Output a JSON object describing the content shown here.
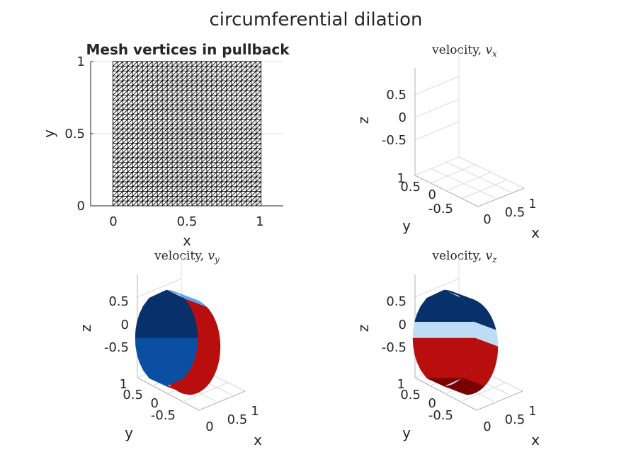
{
  "figure": {
    "title": "circumferential dilation"
  },
  "chart_data": [
    {
      "type": "mesh",
      "title": "Mesh vertices in pullback",
      "xlabel": "x",
      "ylabel": "y",
      "xlim": [
        -0.15,
        1.15
      ],
      "ylim": [
        0,
        1
      ],
      "xticks": [
        "0",
        "0.5",
        "1"
      ],
      "yticks": [
        "0",
        "0.5",
        "1"
      ],
      "mesh_domain": {
        "x": [
          0,
          1
        ],
        "y": [
          0,
          1
        ]
      },
      "mesh_divisions_x": 30,
      "mesh_divisions_y": 30,
      "triangulated": true,
      "grid": true
    },
    {
      "type": "surface3d",
      "title_text": "velocity, ",
      "title_var": "v",
      "title_sub": "x",
      "xlabel": "x",
      "ylabel": "y",
      "zlabel": "z",
      "xticks": [
        "0",
        "0.5",
        "1"
      ],
      "yticks": [
        "-0.5",
        "0",
        "0.5",
        "1"
      ],
      "zticks": [
        "-0.5",
        "0",
        "0.5"
      ],
      "surface_visible": false,
      "colormap": "blue-white-red"
    },
    {
      "type": "surface3d",
      "title_text": "velocity, ",
      "title_var": "v",
      "title_sub": "y",
      "xlabel": "x",
      "ylabel": "y",
      "zlabel": "z",
      "xticks": [
        "0",
        "0.5",
        "1"
      ],
      "yticks": [
        "-0.5",
        "0",
        "0.5",
        "1"
      ],
      "zticks": [
        "-0.5",
        "0",
        "0.5"
      ],
      "surface_visible": true,
      "shape": "cylinder, axis along x",
      "colormap": "blue-white-red",
      "front_face": "blue",
      "back_face": "red"
    },
    {
      "type": "surface3d",
      "title_text": "velocity, ",
      "title_var": "v",
      "title_sub": "z",
      "xlabel": "x",
      "ylabel": "y",
      "zlabel": "z",
      "xticks": [
        "0",
        "0.5",
        "1"
      ],
      "yticks": [
        "-0.5",
        "0",
        "0.5",
        "1"
      ],
      "zticks": [
        "-0.5",
        "0",
        "0.5"
      ],
      "surface_visible": true,
      "shape": "cylinder, axis along x",
      "colormap": "blue-white-red",
      "top": "blue",
      "bottom": "red"
    }
  ],
  "colors": {
    "text": "#262626",
    "axis": "#262626",
    "grid": "#dcdcdc",
    "box": "#b3b3b3",
    "colormap": [
      "#08306b",
      "#0b4fa3",
      "#1f78d4",
      "#5ca6ec",
      "#bfdcf5",
      "#ffffff",
      "#fbb9b9",
      "#f06a6a",
      "#e02424",
      "#b80e0e",
      "#7a0000"
    ]
  }
}
